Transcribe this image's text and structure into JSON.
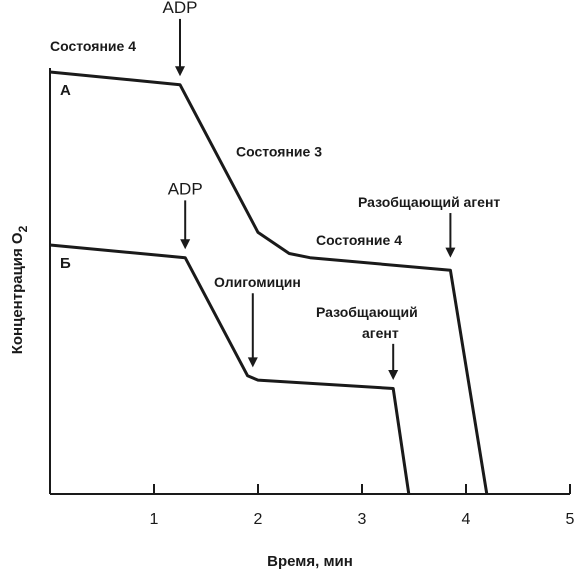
{
  "chart_data": {
    "type": "line",
    "title": "",
    "xlabel": "Время, мин",
    "ylabel": "Концентрация O",
    "ylabel_subscript": "2",
    "xlim": [
      0,
      5
    ],
    "ylim": [
      0,
      100
    ],
    "x_ticks": [
      1,
      2,
      3,
      4,
      5
    ],
    "grid": false,
    "series": [
      {
        "name": "А",
        "points": [
          [
            0,
            100
          ],
          [
            1.25,
            97
          ],
          [
            2.0,
            62
          ],
          [
            2.3,
            57
          ],
          [
            2.5,
            56
          ],
          [
            3.85,
            53
          ],
          [
            4.2,
            0
          ]
        ]
      },
      {
        "name": "Б",
        "points": [
          [
            0,
            59
          ],
          [
            1.3,
            56
          ],
          [
            1.9,
            28
          ],
          [
            2.0,
            27
          ],
          [
            3.3,
            25
          ],
          [
            3.45,
            0
          ]
        ]
      }
    ],
    "annotations": [
      {
        "id": "a-state4-top",
        "text": "Состояние 4",
        "x": 0.5,
        "y": 105,
        "style": "ann"
      },
      {
        "id": "a-adp",
        "text": "ADP",
        "x": 1.25,
        "y": 114,
        "style": "adp",
        "arrow_to": [
          1.25,
          99
        ]
      },
      {
        "id": "a-state3",
        "text": "Состояние 3",
        "x": 2.2,
        "y": 80,
        "style": "ann"
      },
      {
        "id": "a-uncoupler-a",
        "text": "Разобщающий агент",
        "x": 3.75,
        "y": 68,
        "style": "ann",
        "arrow_to": [
          3.85,
          56
        ]
      },
      {
        "id": "a-state4-mid",
        "text": "Состояние 4",
        "x": 3.1,
        "y": 59,
        "style": "ann"
      },
      {
        "id": "b-adp",
        "text": "ADP",
        "x": 1.3,
        "y": 71,
        "style": "adp",
        "arrow_to": [
          1.3,
          58
        ]
      },
      {
        "id": "b-oligomycin",
        "text": "Олигомицин",
        "x": 1.95,
        "y": 49,
        "style": "ann",
        "arrow_to": [
          1.95,
          30
        ]
      },
      {
        "id": "b-uncoupler-1",
        "text": "Разобщающий",
        "x": 3.3,
        "y": 42,
        "style": "ann"
      },
      {
        "id": "b-uncoupler-2",
        "text": "агент",
        "x": 3.2,
        "y": 37,
        "style": "ann",
        "arrow_to": [
          3.3,
          27
        ]
      }
    ]
  }
}
